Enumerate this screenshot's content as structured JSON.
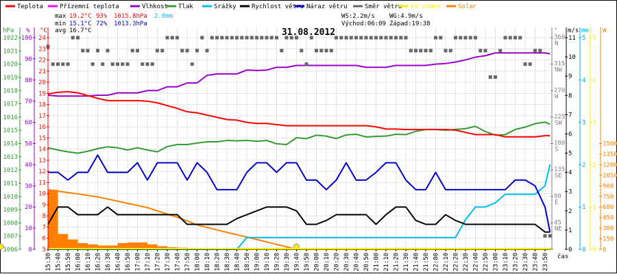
{
  "chart_data": {
    "type": "line",
    "title": "31.08.2012",
    "xlabel": "čas",
    "legend": [
      {
        "label": "Teplota",
        "color": "#ff0000"
      },
      {
        "label": "Přízemní teplota",
        "color": "#ff00ff"
      },
      {
        "label": "Vlhkost",
        "color": "#9900cc"
      },
      {
        "label": "Tlak",
        "color": "#339933"
      },
      {
        "label": "Srážky",
        "color": "#00bbee"
      },
      {
        "label": "Rychlost větru",
        "color": "#000000"
      },
      {
        "label": "Náraz větru",
        "color": "#0000cc"
      },
      {
        "label": "Směr větru",
        "color": "#666666"
      },
      {
        "label": "UV index",
        "color": "#ffee00"
      },
      {
        "label": "Solar",
        "color": "#ff8000"
      }
    ],
    "stats": {
      "max_label": "max",
      "min_label": "min",
      "avg_label": "avg",
      "max": {
        "temp": "19.2°C",
        "hum": "93%",
        "press": "1015.8hPa",
        "rain": "2.0mm"
      },
      "min": {
        "temp": "15.1°C",
        "hum": "72%",
        "press": "1013.3hPa"
      },
      "avg": {
        "temp": "16.7°C"
      },
      "ws": "WS:2.2m/s",
      "wg": "WG:4.9m/s",
      "sunrise": "Východ:06:09",
      "sunset": "Západ:19:38"
    },
    "axes": [
      {
        "id": "hpa",
        "unit": "hPa",
        "min": 1006,
        "max": 1022,
        "step": 1,
        "tick_max": 1022,
        "color": "#339933"
      },
      {
        "id": "pct",
        "unit": "%",
        "min": 0,
        "max": 100,
        "step": 10,
        "tick_max": 100,
        "color": "#9900cc"
      },
      {
        "id": "c",
        "unit": "°C",
        "min": 5,
        "max": 24,
        "step": 1,
        "tick_max": 24,
        "color": "#ff0000"
      },
      {
        "id": "deg",
        "unit": "°",
        "min": 0,
        "max": 360,
        "step": 45,
        "tick_max": 360,
        "color": "#808080",
        "compass": {
          "45": "NE",
          "90": "E",
          "135": "SE",
          "180": "S",
          "225": "SW",
          "270": "W",
          "315": "NW",
          "360": "N"
        }
      },
      {
        "id": "ms",
        "unit": "m/s",
        "min": 0,
        "max": 11,
        "step": 1,
        "tick_max": 11,
        "color": "#000000"
      },
      {
        "id": "mm",
        "unit": "mm",
        "min": 0,
        "max": 5,
        "step": 1,
        "tick_max": 5,
        "color": "#00aaee"
      },
      {
        "id": "uv",
        "unit": "",
        "min": 0,
        "max": 5,
        "step": 1,
        "tick_max": 5,
        "color": "#ffee00"
      },
      {
        "id": "w",
        "unit": "W",
        "min": 0,
        "max": 3000,
        "step": 150,
        "tick_max": 1500,
        "color": "#ff8000"
      }
    ],
    "x_ticks": [
      "15:30",
      "15:40",
      "15:50",
      "16:00",
      "16:10",
      "16:20",
      "16:30",
      "16:40",
      "16:50",
      "17:00",
      "17:10",
      "17:20",
      "17:30",
      "17:40",
      "17:50",
      "18:00",
      "18:10",
      "18:20",
      "18:30",
      "18:40",
      "18:50",
      "19:00",
      "19:10",
      "19:20",
      "19:30",
      "19:40",
      "19:50",
      "20:00",
      "20:10",
      "20:20",
      "20:30",
      "20:40",
      "20:50",
      "21:00",
      "21:10",
      "21:20",
      "21:30",
      "21:40",
      "21:50",
      "22:00",
      "22:10",
      "22:20",
      "22:30",
      "22:40",
      "22:50",
      "23:00",
      "23:10",
      "23:20",
      "23:30",
      "23:40",
      "23:50"
    ],
    "x_minutes_from_start": [
      0,
      10,
      20,
      30,
      40,
      50,
      60,
      70,
      80,
      90,
      100,
      110,
      120,
      130,
      140,
      150,
      160,
      170,
      180,
      190,
      200,
      210,
      220,
      230,
      240,
      250,
      260,
      270,
      280,
      290,
      300,
      310,
      320,
      330,
      340,
      350,
      360,
      370,
      380,
      390,
      400,
      410,
      420,
      430,
      440,
      450,
      460,
      470,
      480,
      490,
      500,
      505
    ],
    "series": [
      {
        "legend": 9,
        "kind": "area",
        "axis": "w",
        "values": [
          845,
          217,
          140,
          88,
          70,
          55,
          55,
          88,
          97,
          97,
          70,
          45,
          30,
          23,
          20,
          15,
          15,
          15,
          8,
          5,
          3,
          0,
          0,
          0,
          0,
          0,
          0,
          0,
          0,
          0,
          0,
          0,
          0,
          0,
          0,
          0,
          0,
          0,
          0,
          0,
          0,
          0,
          0,
          0,
          0,
          0,
          0,
          0,
          0,
          0,
          0,
          0
        ]
      },
      {
        "legend": 9,
        "kind": "line",
        "axis": "w",
        "note_values": "max",
        "values": [
          845,
          825,
          805,
          785,
          764,
          743,
          713,
          683,
          652,
          622,
          591,
          545,
          500,
          455,
          405,
          345,
          310,
          275,
          240,
          207,
          175,
          140,
          105,
          70,
          35,
          0
        ]
      },
      {
        "legend": 8,
        "kind": "line",
        "axis": "uv",
        "values": [
          0,
          0,
          0,
          0,
          0,
          0,
          0,
          0,
          0,
          0,
          0,
          0,
          0,
          0,
          0,
          0,
          0,
          0,
          0,
          0,
          0,
          0,
          0,
          0,
          0,
          0,
          0,
          0,
          0,
          0,
          0,
          0,
          0,
          0,
          0,
          0,
          0,
          0,
          0,
          0,
          0,
          0,
          0,
          0,
          0,
          0,
          0,
          0,
          0,
          0,
          0,
          0
        ]
      },
      {
        "legend": 4,
        "kind": "line",
        "axis": "mm",
        "values": [
          0,
          0,
          0,
          0,
          0,
          0,
          0,
          0,
          0,
          0,
          0,
          0,
          0,
          0,
          0,
          0,
          0,
          0,
          0,
          0,
          0.28,
          0.28,
          0.28,
          0.28,
          0.28,
          0.28,
          0.28,
          0.28,
          0.28,
          0.28,
          0.28,
          0.28,
          0.28,
          0.28,
          0.28,
          0.28,
          0.28,
          0.28,
          0.28,
          0.28,
          0.28,
          0.28,
          0.7,
          1.0,
          1.0,
          1.1,
          1.3,
          1.3,
          1.3,
          1.3,
          1.5,
          2.0
        ]
      },
      {
        "legend": 5,
        "kind": "line",
        "axis": "ms",
        "values": [
          1.3,
          2.2,
          2.2,
          1.8,
          1.8,
          1.8,
          2.2,
          1.8,
          1.8,
          1.8,
          1.8,
          1.8,
          1.8,
          1.8,
          1.3,
          1.3,
          1.3,
          1.3,
          1.3,
          1.6,
          1.8,
          2.0,
          2.2,
          2.2,
          2.2,
          2.0,
          1.3,
          1.3,
          1.5,
          1.8,
          1.8,
          1.8,
          1.8,
          1.3,
          1.8,
          2.2,
          2.2,
          1.5,
          1.3,
          1.3,
          1.8,
          1.5,
          1.3,
          1.3,
          1.3,
          1.3,
          1.3,
          1.3,
          1.3,
          1.3,
          0.9,
          0.9
        ]
      },
      {
        "legend": 6,
        "kind": "line",
        "axis": "ms",
        "values": [
          4.0,
          4.0,
          3.6,
          4.0,
          4.0,
          4.9,
          4.0,
          4.0,
          4.0,
          4.5,
          3.6,
          4.5,
          4.5,
          4.5,
          3.6,
          4.5,
          4.0,
          3.1,
          3.1,
          3.1,
          4.0,
          4.5,
          4.5,
          4.0,
          4.5,
          4.5,
          3.6,
          3.6,
          3.1,
          3.6,
          4.5,
          3.6,
          3.6,
          4.0,
          4.5,
          4.5,
          3.6,
          3.1,
          3.1,
          4.0,
          3.1,
          3.1,
          3.1,
          3.1,
          3.1,
          3.1,
          3.1,
          3.6,
          3.6,
          3.3,
          2.2,
          0.9
        ]
      },
      {
        "legend": 3,
        "kind": "line",
        "axis": "hpa",
        "values": [
          1013.68,
          1013.51,
          1013.37,
          1013.27,
          1013.41,
          1013.61,
          1013.75,
          1013.68,
          1013.51,
          1013.68,
          1013.51,
          1013.37,
          1013.77,
          1013.92,
          1013.92,
          1014.03,
          1014.13,
          1014.13,
          1014.23,
          1014.2,
          1014.23,
          1014.17,
          1014.23,
          1013.98,
          1013.92,
          1014.44,
          1014.37,
          1014.63,
          1014.56,
          1014.37,
          1014.65,
          1014.7,
          1014.5,
          1014.54,
          1014.56,
          1014.7,
          1014.67,
          1014.92,
          1015.06,
          1015.06,
          1015.0,
          1015.07,
          1015.12,
          1015.3,
          1014.9,
          1014.63,
          1014.67,
          1015.06,
          1015.24,
          1015.5,
          1015.62,
          1015.45
        ]
      },
      {
        "legend": 2,
        "kind": "line",
        "axis": "pct",
        "values": [
          72.8,
          72.4,
          72.4,
          72.4,
          72.4,
          72.8,
          72.8,
          73.9,
          73.9,
          73.9,
          75,
          75,
          76.8,
          76.8,
          78.6,
          78.6,
          82.2,
          82.9,
          82.9,
          82.9,
          84.7,
          84.5,
          84.7,
          86,
          86,
          86.9,
          86.9,
          86.9,
          86.9,
          86.9,
          86.9,
          86.9,
          86,
          86,
          86,
          86.9,
          86.9,
          86.9,
          86.9,
          87.5,
          87.8,
          88.5,
          89.5,
          90.8,
          91.5,
          92.8,
          92.8,
          92.8,
          92.8,
          92.8,
          92.8,
          92.4
        ]
      },
      {
        "legend": 0,
        "kind": "line",
        "axis": "c",
        "values": [
          18.95,
          19.1,
          19.15,
          19.05,
          18.8,
          18.55,
          18.35,
          18.35,
          18.35,
          18.35,
          18.3,
          18.15,
          17.9,
          17.65,
          17.35,
          17.25,
          17.05,
          16.85,
          16.65,
          16.6,
          16.4,
          16.3,
          16.3,
          16.2,
          16.1,
          16.1,
          16.1,
          16.1,
          16.1,
          16.1,
          16.1,
          16.1,
          16.1,
          16.0,
          15.8,
          15.8,
          15.75,
          15.75,
          15.75,
          15.75,
          15.75,
          15.7,
          15.5,
          15.3,
          15.3,
          15.3,
          15.1,
          15.1,
          15.1,
          15.1,
          15.2,
          15.2
        ]
      }
    ],
    "wind_direction": {
      "legend": 7,
      "axis": "deg",
      "interval_minutes": 5,
      "values": [
        345,
        315,
        315,
        315,
        315,
        360,
        360,
        338,
        338,
        315,
        338,
        315,
        338,
        315,
        315,
        315,
        315,
        338,
        338,
        315,
        315,
        315,
        338,
        338,
        360,
        360,
        360,
        338,
        338,
        315,
        338,
        360,
        338,
        360,
        360,
        360,
        360,
        360,
        360,
        360,
        360,
        360,
        360,
        360,
        360,
        360,
        360,
        338,
        360,
        360,
        360,
        338,
        315,
        360,
        338,
        338,
        338,
        338,
        360,
        360,
        360,
        360,
        360,
        360,
        360,
        360,
        360,
        360,
        360,
        360,
        360,
        360,
        360,
        338,
        338,
        338,
        338,
        338,
        360,
        360,
        338,
        338,
        360,
        360,
        360,
        360,
        360,
        338,
        338,
        293,
        293,
        338,
        360,
        360,
        360,
        360,
        315,
        315,
        338,
        338,
        23,
        23
      ]
    },
    "markers": [
      {
        "name": "sunset",
        "minutes_from_start": 250,
        "color": "#ffee00"
      }
    ]
  }
}
